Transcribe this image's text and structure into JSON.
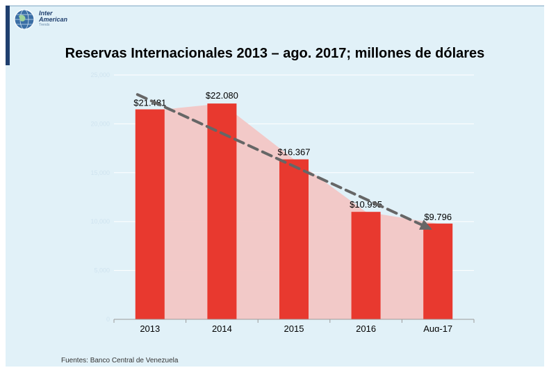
{
  "brand": {
    "line1": "Inter",
    "line2": "American",
    "sub": "Trends"
  },
  "title": "Reservas Internacionales 2013 – ago. 2017; millones de dólares",
  "source": "Fuentes: Banco Central de Venezuela",
  "colors": {
    "bar": "#e8392f",
    "area": "#f2c6c5",
    "trend": "#666666",
    "background": "#e1f1f8"
  },
  "chart_data": {
    "type": "bar",
    "categories": [
      "2013",
      "2014",
      "2015",
      "2016",
      "Aug-17"
    ],
    "values": [
      21481,
      22080,
      16367,
      10995,
      9796
    ],
    "data_labels": [
      "$21.481",
      "$22.080",
      "$16.367",
      "$10.995",
      "$9.796"
    ],
    "ylim": [
      0,
      25000
    ],
    "yticks": [
      "0",
      "5,000",
      "10,000",
      "15,000",
      "20,000",
      "25,000"
    ],
    "ytick_values": [
      0,
      5000,
      10000,
      15000,
      20000,
      25000
    ],
    "area_overlay": true,
    "trendline": {
      "style": "dashed",
      "arrow": true,
      "start": 23000,
      "end": 9300
    },
    "grid": true
  }
}
